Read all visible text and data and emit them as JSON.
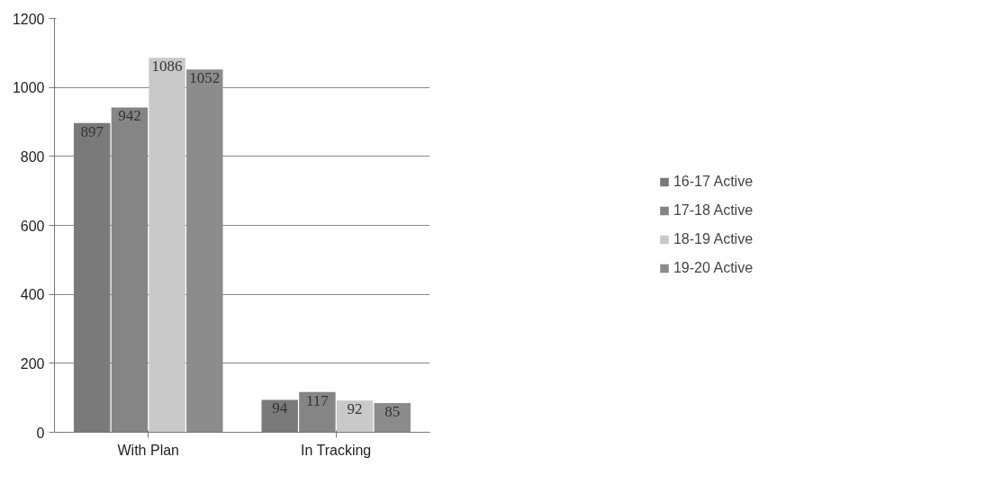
{
  "chart_data": {
    "type": "bar",
    "categories": [
      "With Plan",
      "In Tracking"
    ],
    "series": [
      {
        "name": "16-17 Active",
        "color": "#7a7a7a",
        "values": [
          897,
          94
        ]
      },
      {
        "name": "17-18 Active",
        "color": "#858585",
        "values": [
          942,
          117
        ]
      },
      {
        "name": "18-19 Active",
        "color": "#c9c9c9",
        "values": [
          1086,
          92
        ]
      },
      {
        "name": "19-20 Active",
        "color": "#8c8c8c",
        "values": [
          1052,
          85
        ]
      }
    ],
    "ylim": [
      0,
      1200
    ],
    "yticks": [
      0,
      200,
      400,
      600,
      800,
      1000,
      1200
    ],
    "grid": "y",
    "legend": "right",
    "data_labels": true
  }
}
